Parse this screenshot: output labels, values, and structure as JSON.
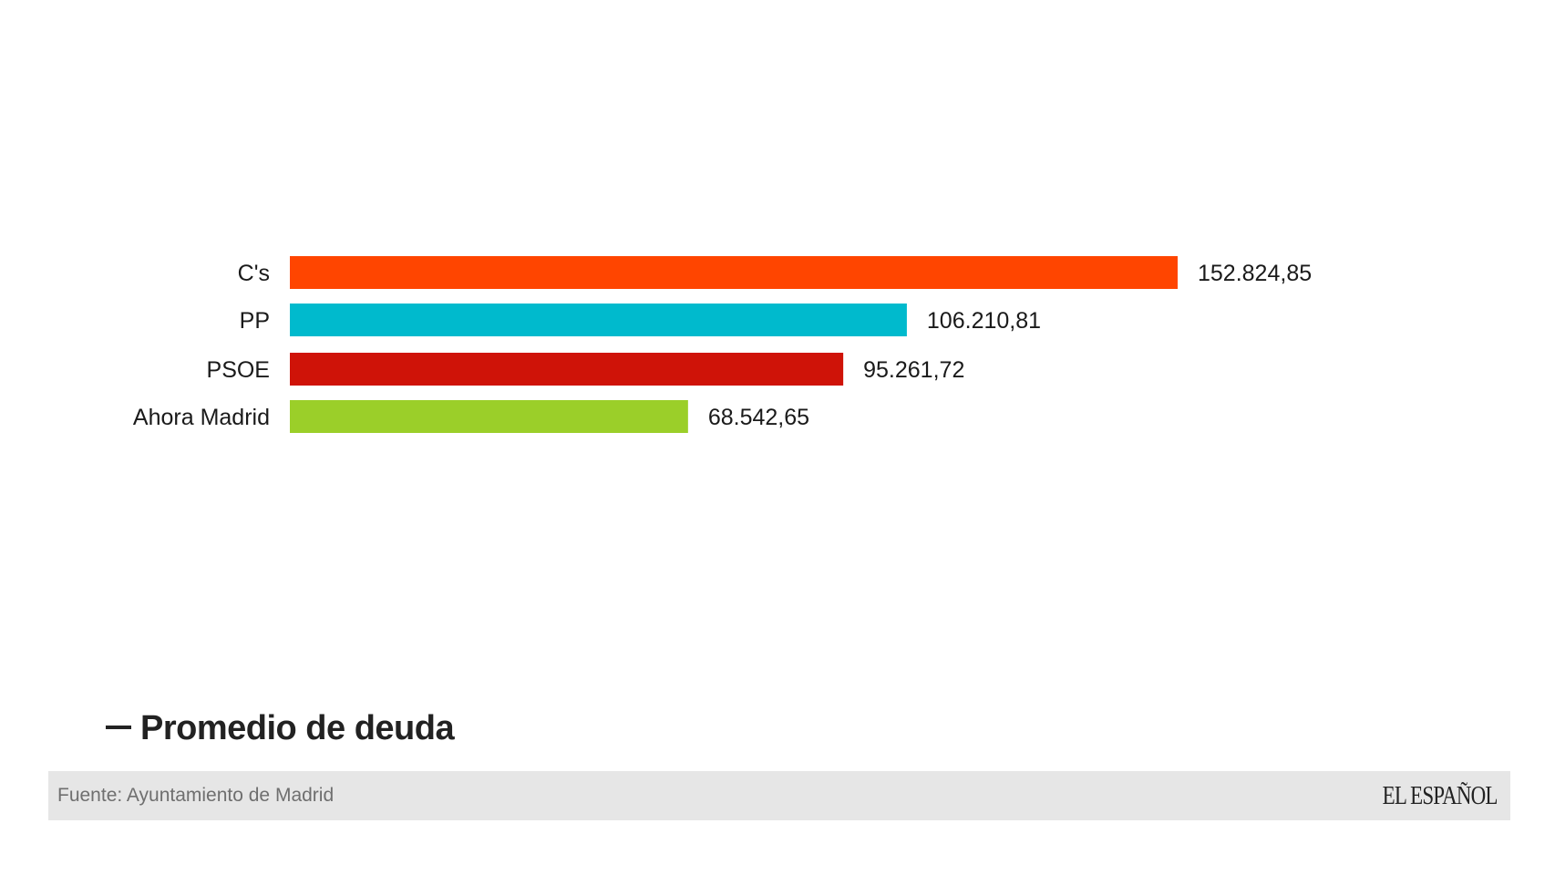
{
  "chart_data": {
    "type": "bar",
    "orientation": "horizontal",
    "title": "Promedio de deuda",
    "categories": [
      "C's",
      "PP",
      "PSOE",
      "Ahora Madrid"
    ],
    "values": [
      152824.85,
      106210.81,
      95261.72,
      68542.65
    ],
    "value_labels": [
      "152.824,85",
      "106.210,81",
      "95.261,72",
      "68.542,65"
    ],
    "colors": [
      "#ff4500",
      "#00bacd",
      "#cf1308",
      "#9bcf29"
    ],
    "xlim": [
      0,
      152824.85
    ],
    "grid": false,
    "legend": "none"
  },
  "footer": {
    "source": "Fuente: Ayuntamiento de Madrid",
    "brand": "EL ESPAÑOL"
  }
}
